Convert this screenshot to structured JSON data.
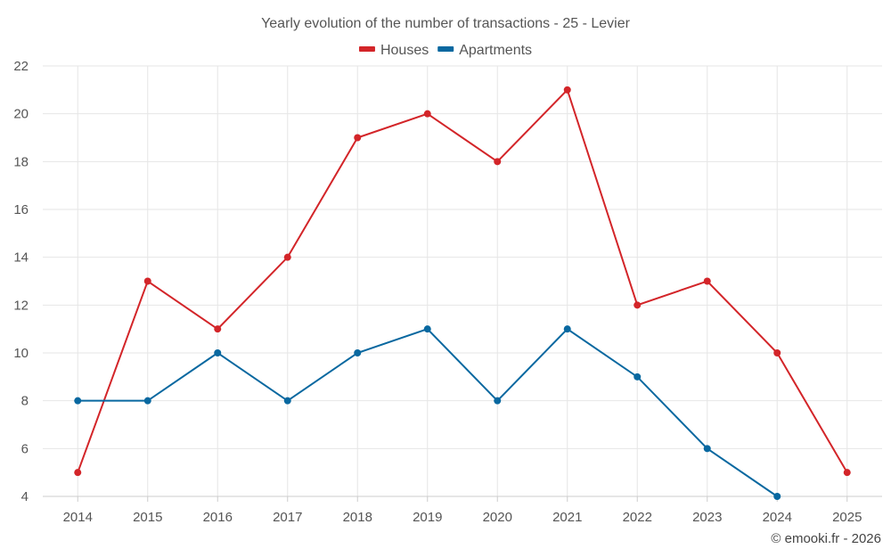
{
  "chart_data": {
    "type": "line",
    "title": "Yearly evolution of the number of transactions - 25 - Levier",
    "categories": [
      "2014",
      "2015",
      "2016",
      "2017",
      "2018",
      "2019",
      "2020",
      "2021",
      "2022",
      "2023",
      "2024",
      "2025"
    ],
    "series": [
      {
        "name": "Houses",
        "color": "#d32529",
        "values": [
          5,
          13,
          11,
          14,
          19,
          20,
          18,
          21,
          12,
          13,
          10,
          5
        ]
      },
      {
        "name": "Apartments",
        "color": "#0868a0",
        "values": [
          8,
          8,
          10,
          8,
          10,
          11,
          8,
          11,
          9,
          6,
          4,
          null
        ]
      }
    ],
    "ylim": [
      4,
      22
    ],
    "yticks": [
      4,
      6,
      8,
      10,
      12,
      14,
      16,
      18,
      20,
      22
    ],
    "grid": true,
    "legend": "top-center",
    "xlabel": "",
    "ylabel": ""
  },
  "credit": "© emooki.fr - 2026"
}
